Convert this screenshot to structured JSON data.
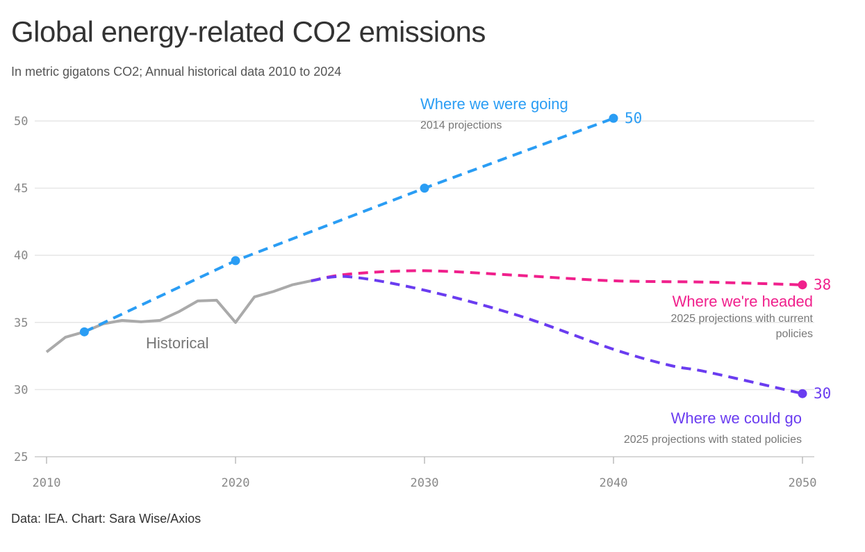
{
  "chart_data": {
    "type": "line",
    "title": "Global energy-related CO2 emissions",
    "subtitle": "In metric gigatons CO2; Annual historical data 2010 to 2024",
    "source": "Data: IEA. Chart: Sara Wise/Axios",
    "xlabel": "",
    "ylabel": "",
    "xlim": [
      2010,
      2050
    ],
    "ylim": [
      25,
      52
    ],
    "grid": true,
    "x_ticks": [
      2010,
      2020,
      2030,
      2040,
      2050
    ],
    "y_ticks": [
      25,
      30,
      35,
      40,
      45,
      50
    ],
    "series": [
      {
        "name": "Historical",
        "style": "solid",
        "color": "#aaaaaa",
        "x": [
          2010,
          2011,
          2012,
          2013,
          2014,
          2015,
          2016,
          2017,
          2018,
          2019,
          2020,
          2021,
          2022,
          2023,
          2024
        ],
        "y": [
          32.8,
          33.9,
          34.3,
          34.9,
          35.15,
          35.05,
          35.15,
          35.8,
          36.6,
          36.65,
          35.0,
          36.9,
          37.3,
          37.8,
          38.1
        ]
      },
      {
        "name": "Where we were going",
        "sublabel": "2014 projections",
        "style": "dashed",
        "color": "#2a9df4",
        "x": [
          2012,
          2020,
          2030,
          2040
        ],
        "y": [
          34.3,
          39.6,
          45.0,
          50.2
        ],
        "markers": [
          2012,
          2020,
          2030,
          2040
        ],
        "end_label": "50"
      },
      {
        "name": "Where we're headed",
        "sublabel": "2025 projections with current policies",
        "style": "dashed",
        "color": "#f0208c",
        "x": [
          2024,
          2026,
          2030,
          2035,
          2040,
          2045,
          2050
        ],
        "y": [
          38.1,
          38.6,
          38.85,
          38.5,
          38.1,
          38.0,
          37.8
        ],
        "markers": [
          2050
        ],
        "end_label": "38"
      },
      {
        "name": "Where we could go",
        "sublabel": "2025 projections with stated policies",
        "style": "dashed",
        "color": "#6a3cf0",
        "x": [
          2024,
          2026,
          2030,
          2035,
          2040,
          2043,
          2045,
          2050
        ],
        "y": [
          38.1,
          38.4,
          37.4,
          35.5,
          33.0,
          31.8,
          31.3,
          29.7
        ],
        "markers": [
          2050
        ],
        "end_label": "30"
      }
    ]
  }
}
